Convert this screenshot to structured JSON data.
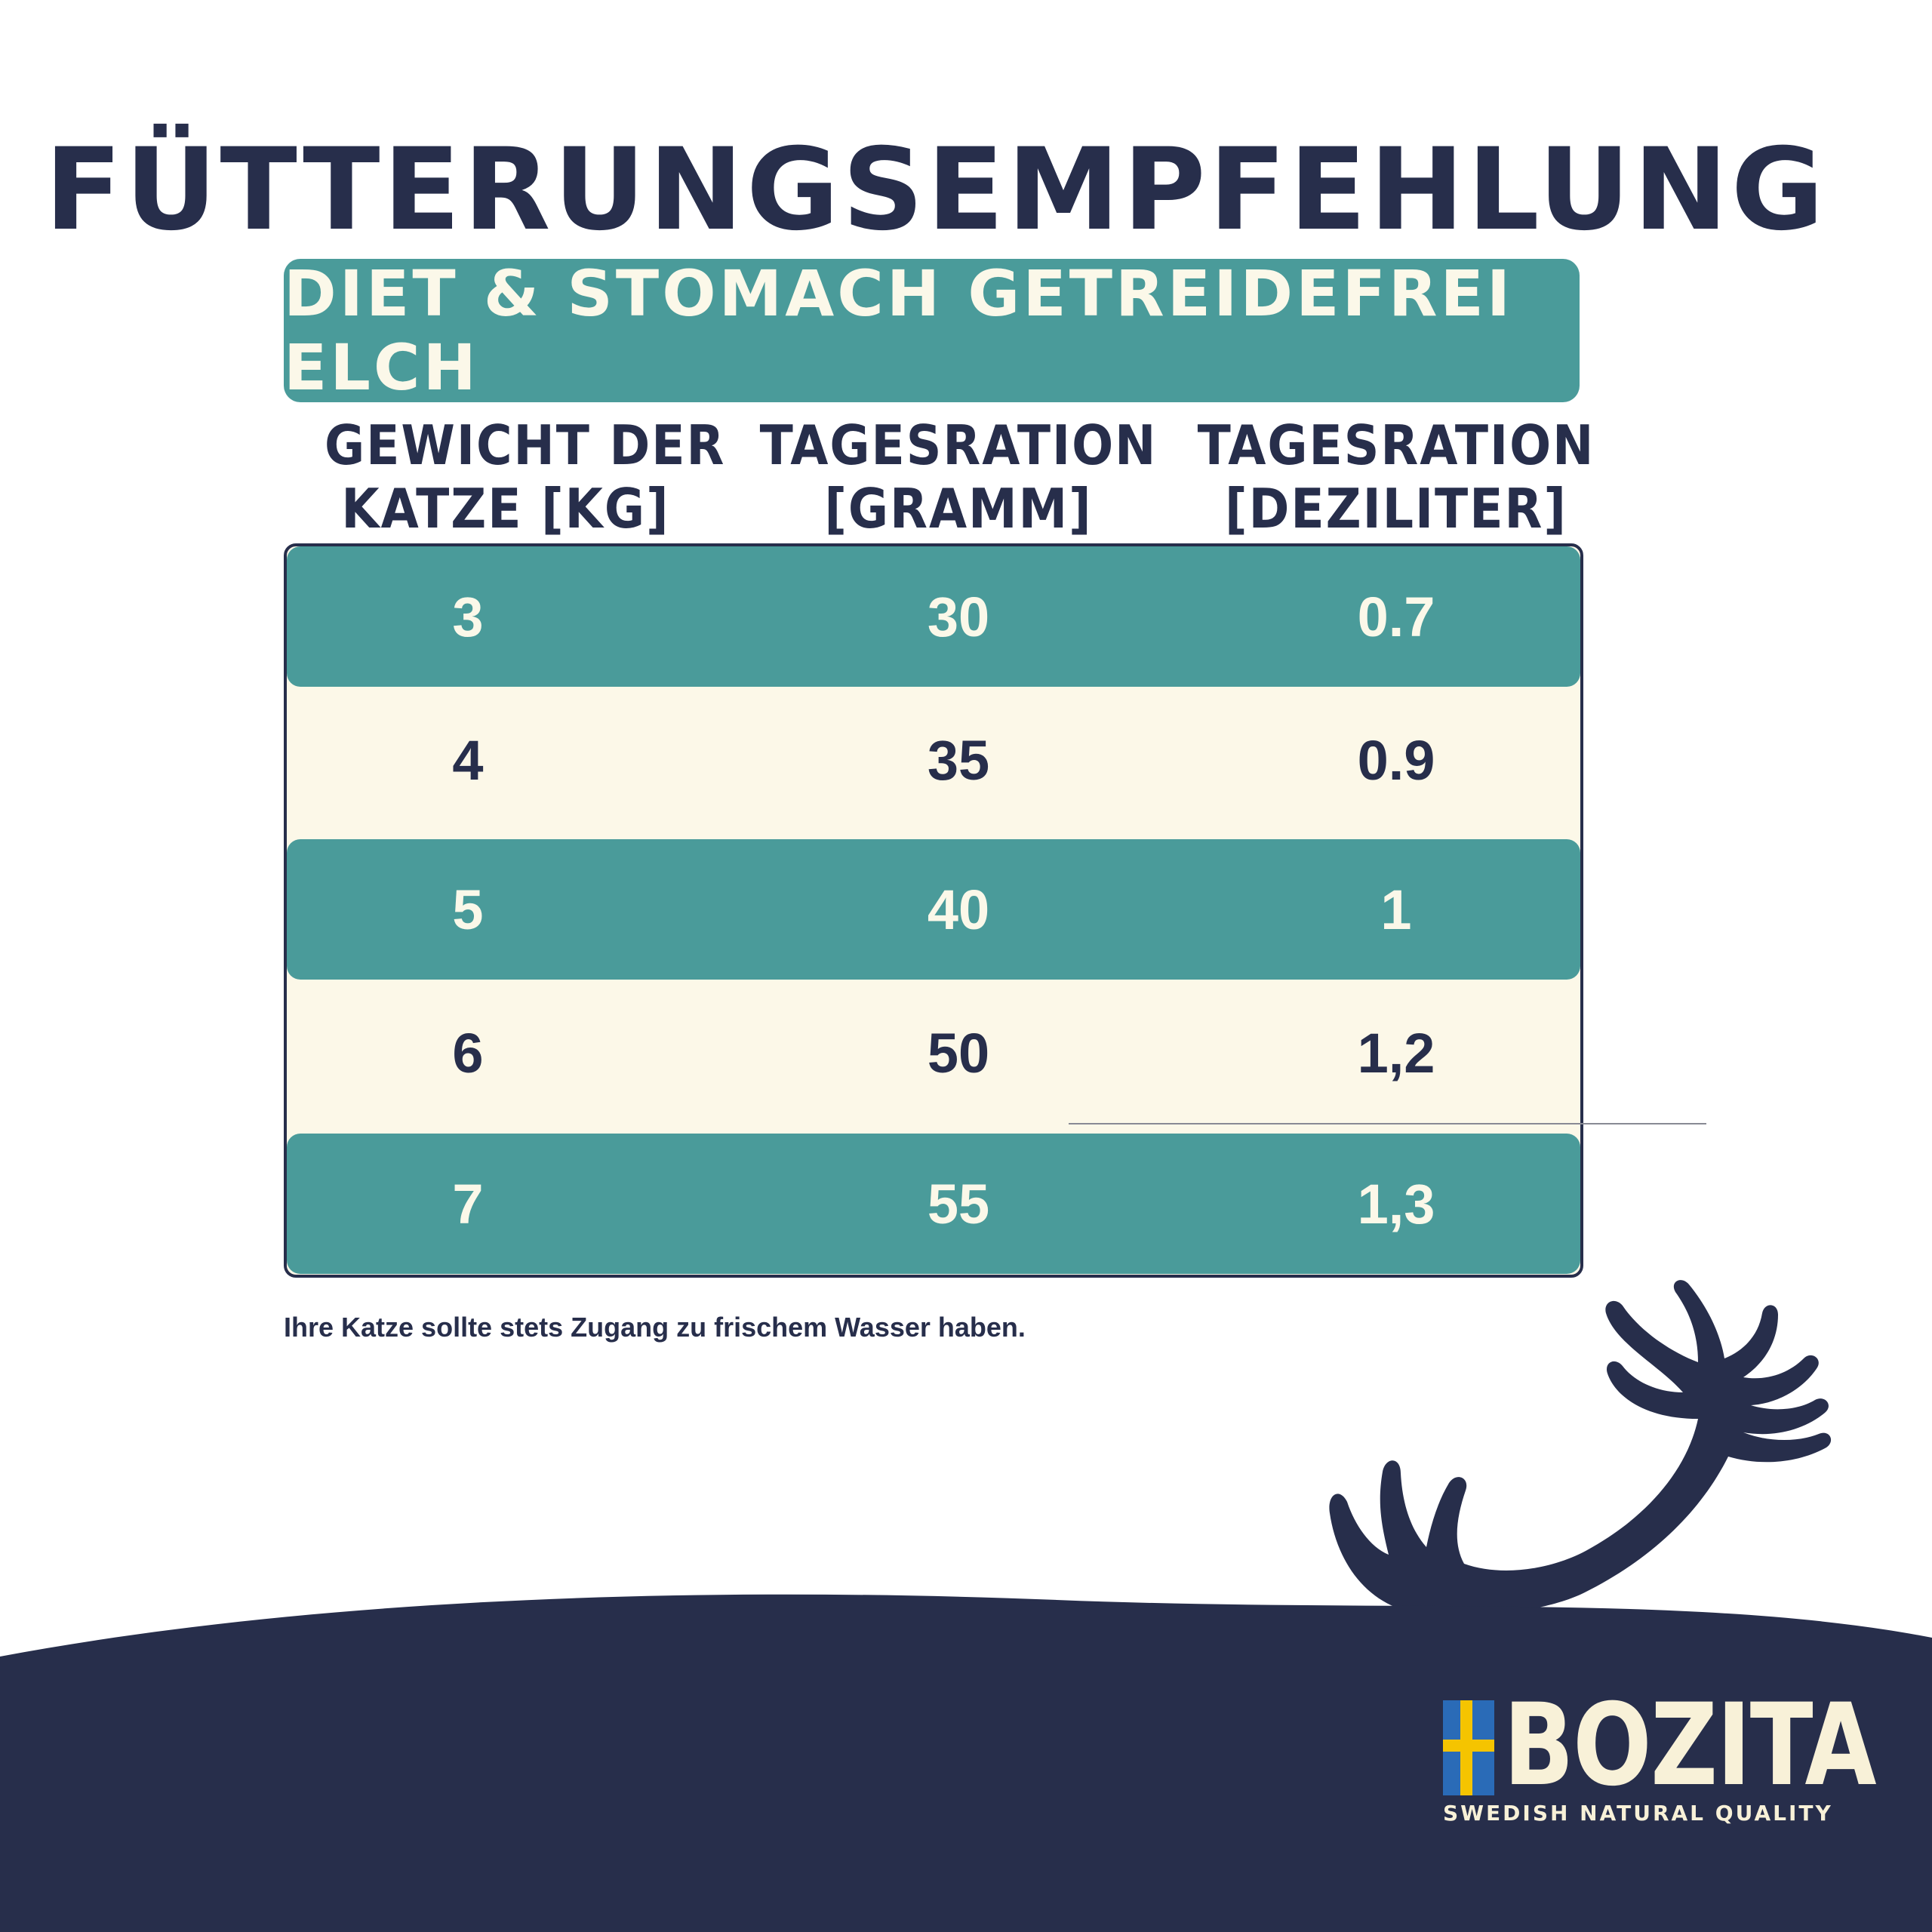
{
  "title": "FÜTTERUNGSEMPFEHLUNG",
  "product": "DIET & STOMACH GETREIDEFREI ELCH",
  "columns": [
    {
      "line1": "GEWICHT DER",
      "line2": "KATZE [KG]"
    },
    {
      "line1": "TAGESRATION",
      "line2": "[GRAMM]"
    },
    {
      "line1": "TAGESRATION",
      "line2": "[DEZILITER]"
    }
  ],
  "rows": [
    {
      "weight": "3",
      "gram": "30",
      "dl": "0.7"
    },
    {
      "weight": "4",
      "gram": "35",
      "dl": "0.9"
    },
    {
      "weight": "5",
      "gram": "40",
      "dl": "1"
    },
    {
      "weight": "6",
      "gram": "50",
      "dl": "1,2"
    },
    {
      "weight": "7",
      "gram": "55",
      "dl": "1,3"
    }
  ],
  "note": "Ihre Katze sollte stets Zugang zu frischem Wasser haben.",
  "logo": {
    "brand": "BOZITA",
    "tagline": "SWEDISH NATURAL QUALITY"
  },
  "colors": {
    "navy": "#272e4b",
    "teal": "#4a9b9a",
    "cream": "#fcf8e8"
  }
}
